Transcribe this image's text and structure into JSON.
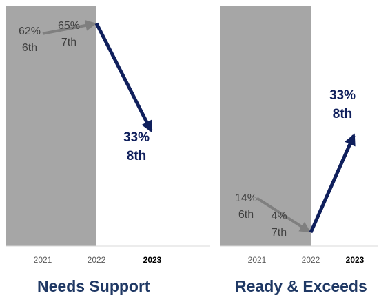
{
  "colors": {
    "shade": "#a6a6a6",
    "prior_arrow": "#7f7f7f",
    "current_arrow": "#0f1f5c",
    "title": "#1f3864",
    "prior_label": "#404040",
    "tick": "#595959"
  },
  "chart_data": [
    {
      "type": "line",
      "title": "Needs Support",
      "x": [
        "2021",
        "2022",
        "2023"
      ],
      "ylim": [
        0,
        70
      ],
      "shaded_years": [
        "2021",
        "2022"
      ],
      "segments": [
        {
          "from": {
            "x": "2021",
            "y": 62
          },
          "to": {
            "x": "2022",
            "y": 65
          },
          "style": "prior"
        },
        {
          "from": {
            "x": "2022",
            "y": 65
          },
          "to": {
            "x": "2023",
            "y": 33
          },
          "style": "current"
        }
      ],
      "labels": [
        {
          "x": "2021",
          "value": "62%",
          "grade": "6th",
          "style": "prior"
        },
        {
          "x": "2022",
          "value": "65%",
          "grade": "7th",
          "style": "prior"
        },
        {
          "x": "2023",
          "value": "33%",
          "grade": "8th",
          "style": "current"
        }
      ]
    },
    {
      "type": "line",
      "title": "Ready & Exceeds",
      "x": [
        "2021",
        "2022",
        "2023"
      ],
      "ylim": [
        0,
        70
      ],
      "shaded_years": [
        "2021",
        "2022"
      ],
      "segments": [
        {
          "from": {
            "x": "2021",
            "y": 14
          },
          "to": {
            "x": "2022",
            "y": 4
          },
          "style": "prior"
        },
        {
          "from": {
            "x": "2022",
            "y": 4
          },
          "to": {
            "x": "2023",
            "y": 33
          },
          "style": "current"
        }
      ],
      "labels": [
        {
          "x": "2021",
          "value": "14%",
          "grade": "6th",
          "style": "prior"
        },
        {
          "x": "2022",
          "value": "4%",
          "grade": "7th",
          "style": "prior"
        },
        {
          "x": "2023",
          "value": "33%",
          "grade": "8th",
          "style": "current"
        }
      ]
    }
  ]
}
